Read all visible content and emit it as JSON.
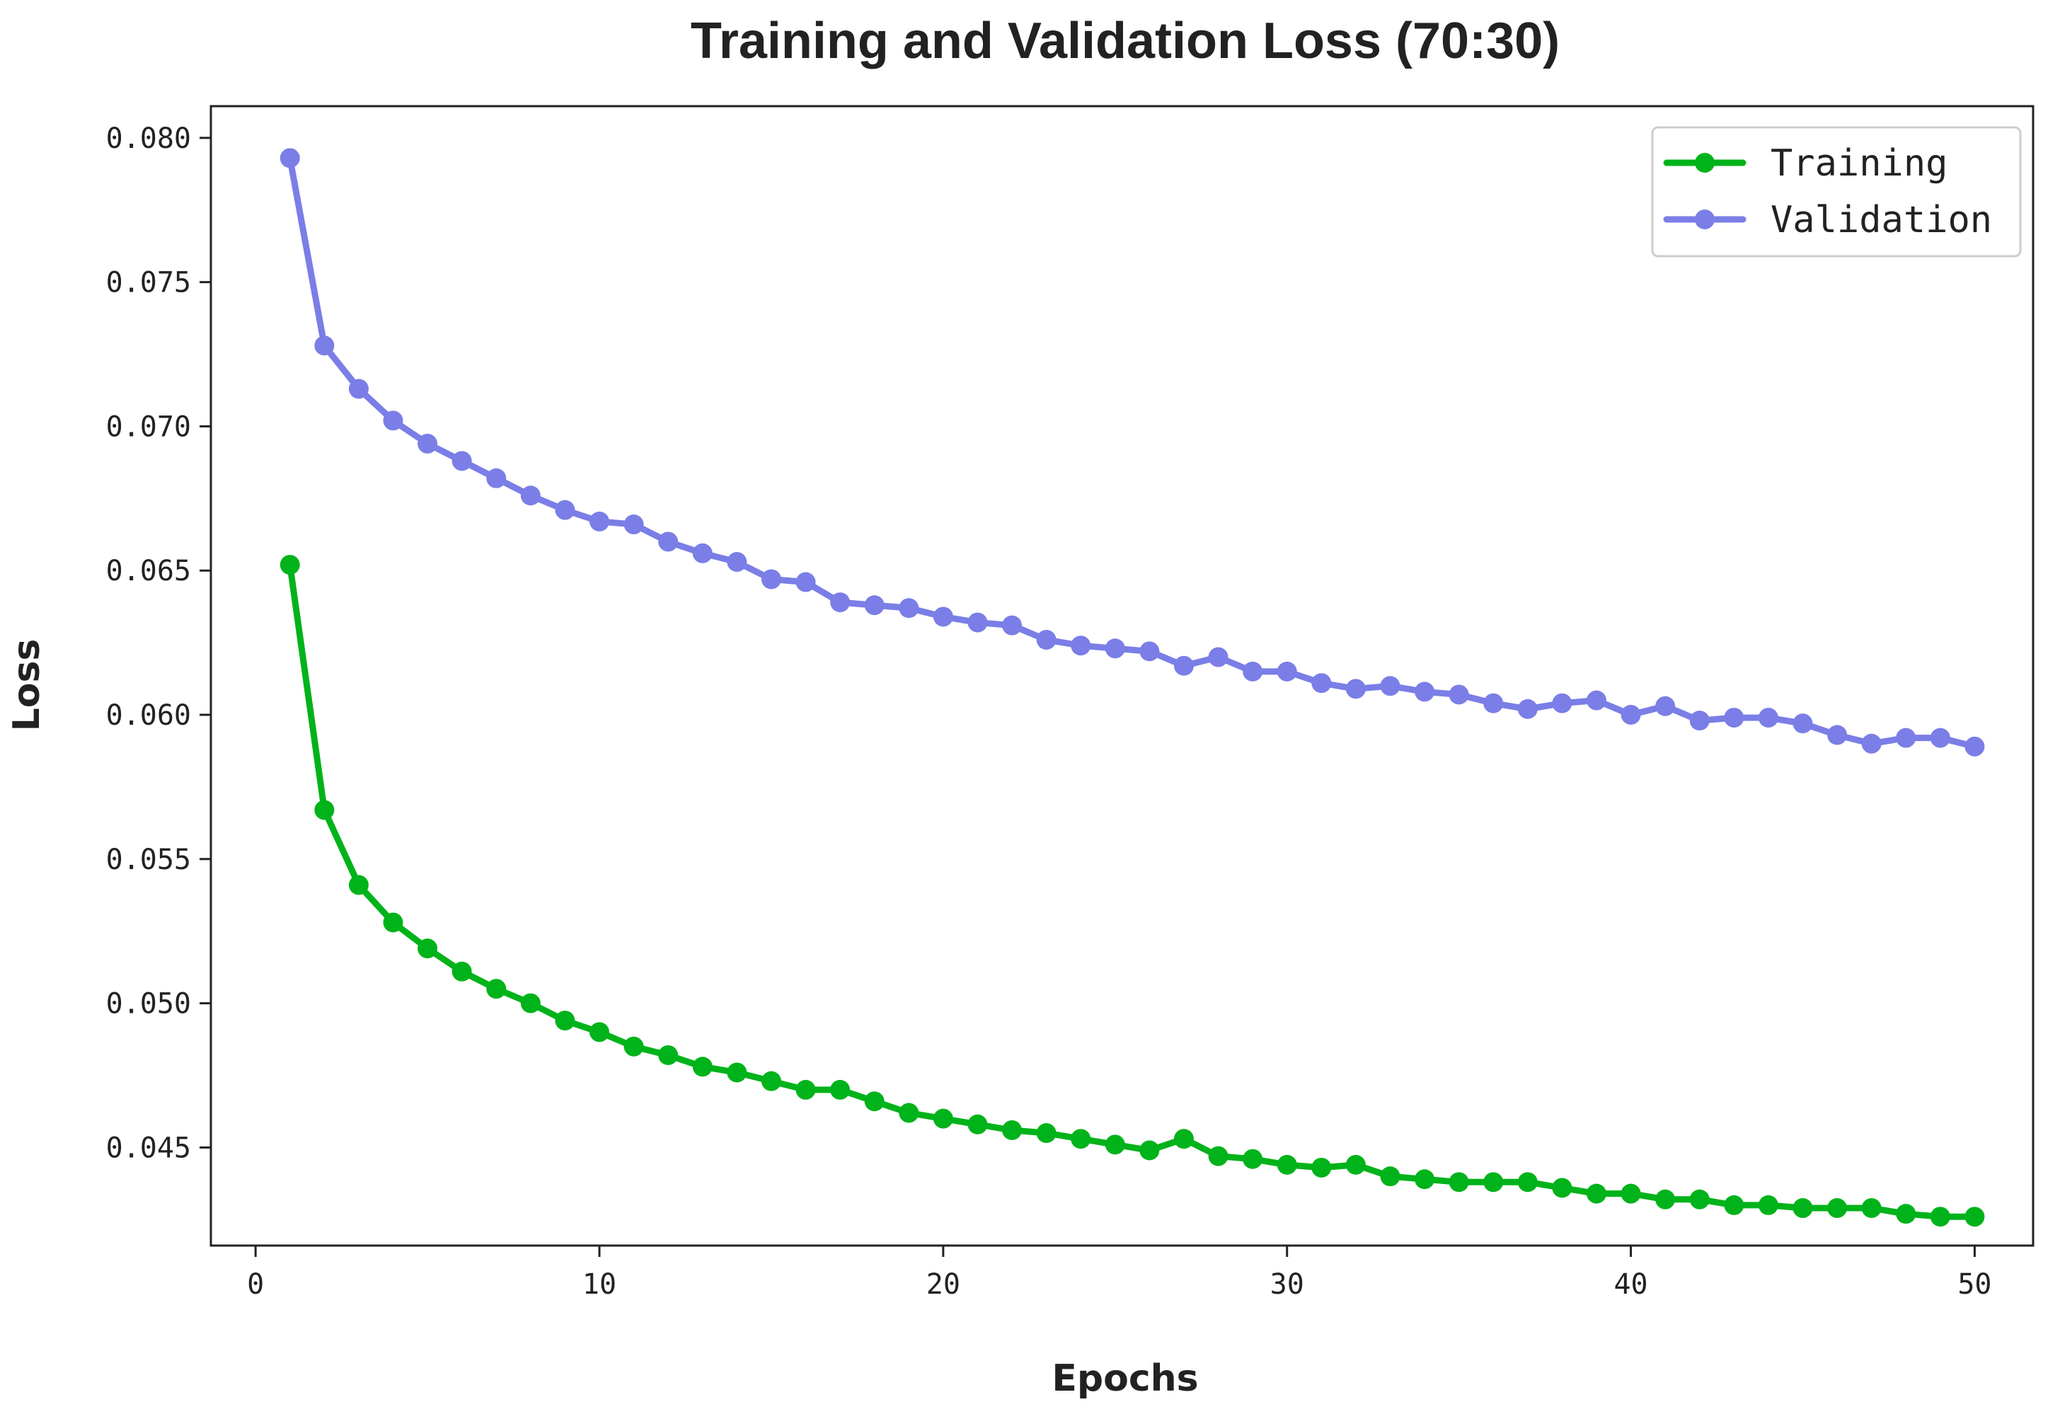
{
  "chart_data": {
    "type": "line",
    "title": "Training and Validation Loss (70:30)",
    "xlabel": "Epochs",
    "ylabel": "Loss",
    "xlim": [
      -1.3,
      51.7
    ],
    "ylim": [
      0.0416,
      0.0811
    ],
    "xticks": [
      0,
      10,
      20,
      30,
      40,
      50
    ],
    "xtick_labels": [
      "0",
      "10",
      "20",
      "30",
      "40",
      "50"
    ],
    "yticks": [
      0.045,
      0.05,
      0.055,
      0.06,
      0.065,
      0.07,
      0.075,
      0.08
    ],
    "ytick_labels": [
      "0.045",
      "0.050",
      "0.055",
      "0.060",
      "0.065",
      "0.070",
      "0.075",
      "0.080"
    ],
    "grid": false,
    "legend_position": "top-right",
    "x": [
      1,
      2,
      3,
      4,
      5,
      6,
      7,
      8,
      9,
      10,
      11,
      12,
      13,
      14,
      15,
      16,
      17,
      18,
      19,
      20,
      21,
      22,
      23,
      24,
      25,
      26,
      27,
      28,
      29,
      30,
      31,
      32,
      33,
      34,
      35,
      36,
      37,
      38,
      39,
      40,
      41,
      42,
      43,
      44,
      45,
      46,
      47,
      48,
      49,
      50
    ],
    "series": [
      {
        "name": "Training",
        "color": "#00b31a",
        "values": [
          0.0652,
          0.0567,
          0.0541,
          0.0528,
          0.0519,
          0.0511,
          0.0505,
          0.05,
          0.0494,
          0.049,
          0.0485,
          0.0482,
          0.0478,
          0.0476,
          0.0473,
          0.047,
          0.047,
          0.0466,
          0.0462,
          0.046,
          0.0458,
          0.0456,
          0.0455,
          0.0453,
          0.0451,
          0.0449,
          0.0453,
          0.0447,
          0.0446,
          0.0444,
          0.0443,
          0.0444,
          0.044,
          0.0439,
          0.0438,
          0.0438,
          0.0438,
          0.0436,
          0.0434,
          0.0434,
          0.0432,
          0.0432,
          0.043,
          0.043,
          0.0429,
          0.0429,
          0.0429,
          0.0427,
          0.0426,
          0.0426
        ]
      },
      {
        "name": "Validation",
        "color": "#7a7ee6",
        "values": [
          0.0793,
          0.0728,
          0.0713,
          0.0702,
          0.0694,
          0.0688,
          0.0682,
          0.0676,
          0.0671,
          0.0667,
          0.0666,
          0.066,
          0.0656,
          0.0653,
          0.0647,
          0.0646,
          0.0639,
          0.0638,
          0.0637,
          0.0634,
          0.0632,
          0.0631,
          0.0626,
          0.0624,
          0.0623,
          0.0622,
          0.0617,
          0.062,
          0.0615,
          0.0615,
          0.0611,
          0.0609,
          0.061,
          0.0608,
          0.0607,
          0.0604,
          0.0602,
          0.0604,
          0.0605,
          0.06,
          0.0603,
          0.0598,
          0.0599,
          0.0599,
          0.0597,
          0.0593,
          0.059,
          0.0592,
          0.0592,
          0.0589
        ]
      }
    ]
  }
}
